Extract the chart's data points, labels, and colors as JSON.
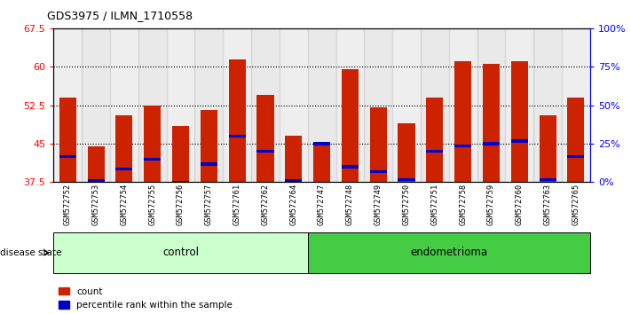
{
  "title": "GDS3975 / ILMN_1710558",
  "samples": [
    "GSM572752",
    "GSM572753",
    "GSM572754",
    "GSM572755",
    "GSM572756",
    "GSM572757",
    "GSM572761",
    "GSM572762",
    "GSM572764",
    "GSM572747",
    "GSM572748",
    "GSM572749",
    "GSM572750",
    "GSM572751",
    "GSM572758",
    "GSM572759",
    "GSM572760",
    "GSM572763",
    "GSM572765"
  ],
  "count_values": [
    54.0,
    44.5,
    50.5,
    52.5,
    48.5,
    51.5,
    61.5,
    54.5,
    46.5,
    45.0,
    59.5,
    52.0,
    49.0,
    54.0,
    61.0,
    60.5,
    61.0,
    50.5,
    54.0
  ],
  "percentile_values": [
    42.5,
    37.8,
    40.0,
    42.0,
    37.5,
    41.0,
    46.5,
    43.5,
    37.8,
    45.0,
    40.5,
    39.5,
    38.0,
    43.5,
    44.5,
    45.0,
    45.5,
    38.0,
    42.5
  ],
  "control_count": 9,
  "endometrioma_count": 10,
  "ymin": 37.5,
  "ymax": 67.5,
  "yticks": [
    37.5,
    45.0,
    52.5,
    60.0,
    67.5
  ],
  "right_yticks": [
    0,
    25,
    50,
    75,
    100
  ],
  "bar_color": "#cc2200",
  "dot_color": "#0000cc",
  "control_bg": "#ccffcc",
  "endometrioma_bg": "#44cc44",
  "label_control": "control",
  "label_endometrioma": "endometrioma",
  "disease_state_label": "disease state",
  "legend_count": "count",
  "legend_percentile": "percentile rank within the sample"
}
